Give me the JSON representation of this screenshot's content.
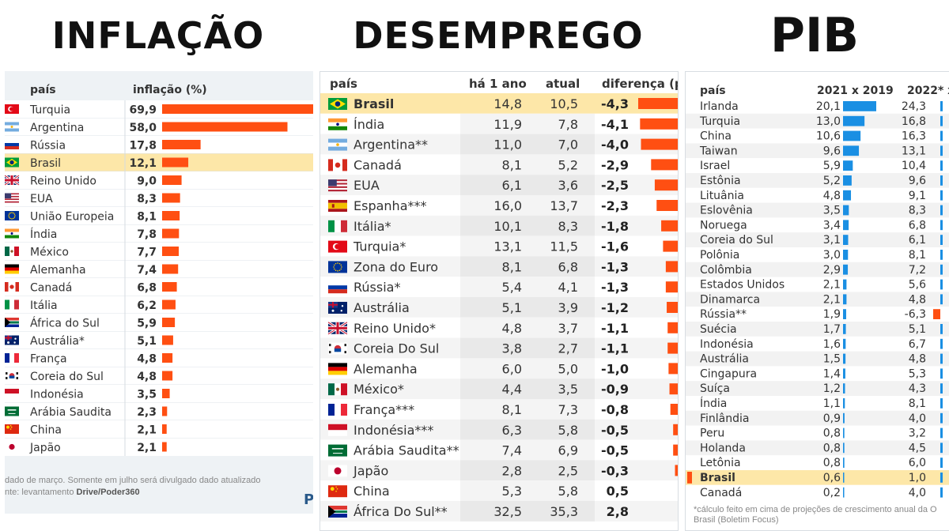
{
  "titles": {
    "inflacao": "INFLAÇÃO",
    "desemprego": "DESEMPREGO",
    "pib": "PIB"
  },
  "colors": {
    "bar_orange": "#ff4f12",
    "bar_blue": "#1a8fe3",
    "highlight": "#fde7a8",
    "header_bg": "#eef2f5"
  },
  "chart_data": [
    {
      "type": "table",
      "columns": [
        "país",
        "inflação (%)"
      ],
      "rows": [
        {
          "flag": "tr",
          "country": "Turquia",
          "value": "69,9",
          "v": 69.9
        },
        {
          "flag": "ar",
          "country": "Argentina",
          "value": "58,0",
          "v": 58.0
        },
        {
          "flag": "ru",
          "country": "Rússia",
          "value": "17,8",
          "v": 17.8
        },
        {
          "flag": "br",
          "country": "Brasil",
          "value": "12,1",
          "v": 12.1,
          "highlight": true
        },
        {
          "flag": "gb",
          "country": "Reino Unido",
          "value": "9,0",
          "v": 9.0
        },
        {
          "flag": "us",
          "country": "EUA",
          "value": "8,3",
          "v": 8.3
        },
        {
          "flag": "eu",
          "country": "União Europeia",
          "value": "8,1",
          "v": 8.1
        },
        {
          "flag": "in",
          "country": "Índia",
          "value": "7,8",
          "v": 7.8
        },
        {
          "flag": "mx",
          "country": "México",
          "value": "7,7",
          "v": 7.7
        },
        {
          "flag": "de",
          "country": "Alemanha",
          "value": "7,4",
          "v": 7.4
        },
        {
          "flag": "ca",
          "country": "Canadá",
          "value": "6,8",
          "v": 6.8
        },
        {
          "flag": "it",
          "country": "Itália",
          "value": "6,2",
          "v": 6.2
        },
        {
          "flag": "za",
          "country": "África do Sul",
          "value": "5,9",
          "v": 5.9
        },
        {
          "flag": "au",
          "country": "Austrália*",
          "value": "5,1",
          "v": 5.1
        },
        {
          "flag": "fr",
          "country": "França",
          "value": "4,8",
          "v": 4.8
        },
        {
          "flag": "kr",
          "country": "Coreia do Sul",
          "value": "4,8",
          "v": 4.8
        },
        {
          "flag": "id",
          "country": "Indonésia",
          "value": "3,5",
          "v": 3.5
        },
        {
          "flag": "sa",
          "country": "Arábia Saudita",
          "value": "2,3",
          "v": 2.3
        },
        {
          "flag": "cn",
          "country": "China",
          "value": "2,1",
          "v": 2.1
        },
        {
          "flag": "jp",
          "country": "Japão",
          "value": "2,1",
          "v": 2.1
        }
      ],
      "footnote": "dado de março. Somente em julho será divulgado dado atualizado",
      "source_prefix": "nte: levantamento ",
      "source_bold": "Drive/Poder360",
      "logo_fragment": "P"
    },
    {
      "type": "table",
      "columns": [
        "país",
        "há 1 ano",
        "atual",
        "diferença (p"
      ],
      "rows": [
        {
          "flag": "br",
          "country": "Brasil",
          "a": "14,8",
          "b": "10,5",
          "diff": "-4,3",
          "v": -4.3,
          "highlight": true
        },
        {
          "flag": "in",
          "country": "Índia",
          "a": "11,9",
          "b": "7,8",
          "diff": "-4,1",
          "v": -4.1
        },
        {
          "flag": "ar",
          "country": "Argentina**",
          "a": "11,0",
          "b": "7,0",
          "diff": "-4,0",
          "v": -4.0
        },
        {
          "flag": "ca",
          "country": "Canadá",
          "a": "8,1",
          "b": "5,2",
          "diff": "-2,9",
          "v": -2.9
        },
        {
          "flag": "us",
          "country": "EUA",
          "a": "6,1",
          "b": "3,6",
          "diff": "-2,5",
          "v": -2.5
        },
        {
          "flag": "es",
          "country": "Espanha***",
          "a": "16,0",
          "b": "13,7",
          "diff": "-2,3",
          "v": -2.3
        },
        {
          "flag": "it",
          "country": "Itália*",
          "a": "10,1",
          "b": "8,3",
          "diff": "-1,8",
          "v": -1.8
        },
        {
          "flag": "tr",
          "country": "Turquia*",
          "a": "13,1",
          "b": "11,5",
          "diff": "-1,6",
          "v": -1.6
        },
        {
          "flag": "eu",
          "country": "Zona do Euro",
          "a": "8,1",
          "b": "6,8",
          "diff": "-1,3",
          "v": -1.3
        },
        {
          "flag": "ru",
          "country": "Rússia*",
          "a": "5,4",
          "b": "4,1",
          "diff": "-1,3",
          "v": -1.3
        },
        {
          "flag": "au",
          "country": "Austrália",
          "a": "5,1",
          "b": "3,9",
          "diff": "-1,2",
          "v": -1.2
        },
        {
          "flag": "gb",
          "country": "Reino Unido*",
          "a": "4,8",
          "b": "3,7",
          "diff": "-1,1",
          "v": -1.1
        },
        {
          "flag": "kr",
          "country": "Coreia Do Sul",
          "a": "3,8",
          "b": "2,7",
          "diff": "-1,1",
          "v": -1.1
        },
        {
          "flag": "de",
          "country": "Alemanha",
          "a": "6,0",
          "b": "5,0",
          "diff": "-1,0",
          "v": -1.0
        },
        {
          "flag": "mx",
          "country": "México*",
          "a": "4,4",
          "b": "3,5",
          "diff": "-0,9",
          "v": -0.9
        },
        {
          "flag": "fr",
          "country": "França***",
          "a": "8,1",
          "b": "7,3",
          "diff": "-0,8",
          "v": -0.8
        },
        {
          "flag": "id",
          "country": "Indonésia***",
          "a": "6,3",
          "b": "5,8",
          "diff": "-0,5",
          "v": -0.5
        },
        {
          "flag": "sa",
          "country": "Arábia Saudita**",
          "a": "7,4",
          "b": "6,9",
          "diff": "-0,5",
          "v": -0.5
        },
        {
          "flag": "jp",
          "country": "Japão",
          "a": "2,8",
          "b": "2,5",
          "diff": "-0,3",
          "v": -0.3
        },
        {
          "flag": "cn",
          "country": "China",
          "a": "5,3",
          "b": "5,8",
          "diff": "0,5",
          "v": 0.5
        },
        {
          "flag": "za",
          "country": "África Do Sul**",
          "a": "32,5",
          "b": "35,3",
          "diff": "2,8",
          "v": 2.8
        }
      ]
    },
    {
      "type": "table",
      "columns": [
        "país",
        "2021 x 2019",
        "2022* x"
      ],
      "rows": [
        {
          "country": "Irlanda",
          "a": "20,1",
          "va": 20.1,
          "b": "24,3",
          "vb": 24.3
        },
        {
          "country": "Turquia",
          "a": "13,0",
          "va": 13.0,
          "b": "16,8",
          "vb": 16.8
        },
        {
          "country": "China",
          "a": "10,6",
          "va": 10.6,
          "b": "16,3",
          "vb": 16.3
        },
        {
          "country": "Taiwan",
          "a": "9,6",
          "va": 9.6,
          "b": "13,1",
          "vb": 13.1
        },
        {
          "country": "Israel",
          "a": "5,9",
          "va": 5.9,
          "b": "10,4",
          "vb": 10.4
        },
        {
          "country": "Estônia",
          "a": "5,2",
          "va": 5.2,
          "b": "9,6",
          "vb": 9.6
        },
        {
          "country": "Lituânia",
          "a": "4,8",
          "va": 4.8,
          "b": "9,1",
          "vb": 9.1
        },
        {
          "country": "Eslovênia",
          "a": "3,5",
          "va": 3.5,
          "b": "8,3",
          "vb": 8.3
        },
        {
          "country": "Noruega",
          "a": "3,4",
          "va": 3.4,
          "b": "6,8",
          "vb": 6.8
        },
        {
          "country": "Coreia do Sul",
          "a": "3,1",
          "va": 3.1,
          "b": "6,1",
          "vb": 6.1
        },
        {
          "country": "Polônia",
          "a": "3,0",
          "va": 3.0,
          "b": "8,1",
          "vb": 8.1
        },
        {
          "country": "Colômbia",
          "a": "2,9",
          "va": 2.9,
          "b": "7,2",
          "vb": 7.2
        },
        {
          "country": "Estados Unidos",
          "a": "2,1",
          "va": 2.1,
          "b": "5,6",
          "vb": 5.6
        },
        {
          "country": "Dinamarca",
          "a": "2,1",
          "va": 2.1,
          "b": "4,8",
          "vb": 4.8
        },
        {
          "country": "Rússia**",
          "a": "1,9",
          "va": 1.9,
          "b": "-6,3",
          "vb": -6.3
        },
        {
          "country": "Suécia",
          "a": "1,7",
          "va": 1.7,
          "b": "5,1",
          "vb": 5.1
        },
        {
          "country": "Indonésia",
          "a": "1,6",
          "va": 1.6,
          "b": "6,7",
          "vb": 6.7
        },
        {
          "country": "Austrália",
          "a": "1,5",
          "va": 1.5,
          "b": "4,8",
          "vb": 4.8
        },
        {
          "country": "Cingapura",
          "a": "1,4",
          "va": 1.4,
          "b": "5,3",
          "vb": 5.3
        },
        {
          "country": "Suíça",
          "a": "1,2",
          "va": 1.2,
          "b": "4,3",
          "vb": 4.3
        },
        {
          "country": "Índia",
          "a": "1,1",
          "va": 1.1,
          "b": "8,1",
          "vb": 8.1
        },
        {
          "country": "Finlândia",
          "a": "0,9",
          "va": 0.9,
          "b": "4,0",
          "vb": 4.0
        },
        {
          "country": "Peru",
          "a": "0,8",
          "va": 0.8,
          "b": "3,2",
          "vb": 3.2
        },
        {
          "country": "Holanda",
          "a": "0,8",
          "va": 0.8,
          "b": "4,5",
          "vb": 4.5
        },
        {
          "country": "Letônia",
          "a": "0,8",
          "va": 0.8,
          "b": "6,0",
          "vb": 6.0
        },
        {
          "country": "Brasil",
          "a": "0,6",
          "va": 0.6,
          "b": "1,0",
          "vb": 1.0,
          "highlight": true
        },
        {
          "country": "Canadá",
          "a": "0,2",
          "va": 0.2,
          "b": "4,0",
          "vb": 4.0
        }
      ],
      "footnote_line1": "*cálculo feito em cima de projeções de crescimento anual da O",
      "footnote_line2": "Brasil (Boletim Focus)"
    }
  ]
}
